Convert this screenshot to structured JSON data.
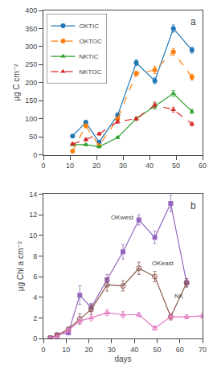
{
  "chart_data": [
    {
      "type": "line",
      "title": "a",
      "ylabel": "μg C cm⁻²",
      "xlim": [
        0,
        60
      ],
      "ylim": [
        0,
        400
      ],
      "xticks": [
        0,
        10,
        20,
        30,
        40,
        50,
        60
      ],
      "yticks": [
        0,
        50,
        100,
        150,
        200,
        250,
        300,
        350,
        400
      ],
      "grid": false,
      "legend": "upper left",
      "series": [
        {
          "name": "OKTIC",
          "x": [
            11,
            16,
            21,
            28,
            35,
            42,
            49,
            56
          ],
          "values": [
            52,
            90,
            35,
            110,
            255,
            205,
            350,
            290
          ],
          "yerr": [
            3,
            5,
            4,
            6,
            8,
            8,
            10,
            8
          ],
          "marker": "circle",
          "line_style": "solid"
        },
        {
          "name": "OKTOC",
          "x": [
            11,
            16,
            21,
            28,
            35,
            42,
            49,
            56
          ],
          "values": [
            10,
            80,
            25,
            100,
            225,
            235,
            285,
            215
          ],
          "yerr": [
            2,
            5,
            3,
            5,
            7,
            10,
            10,
            8
          ],
          "marker": "circle",
          "line_style": "dashed"
        },
        {
          "name": "NKTIC",
          "x": [
            11,
            16,
            21,
            28,
            35,
            42,
            49,
            56
          ],
          "values": [
            28,
            28,
            22,
            48,
            100,
            135,
            170,
            120
          ],
          "yerr": [
            3,
            3,
            2,
            3,
            5,
            8,
            8,
            6
          ],
          "marker": "triangle-up",
          "line_style": "solid"
        },
        {
          "name": "NKTOC",
          "x": [
            11,
            16,
            21,
            28,
            35,
            42,
            49,
            56
          ],
          "values": [
            30,
            42,
            58,
            92,
            100,
            138,
            125,
            85
          ],
          "yerr": [
            3,
            4,
            4,
            5,
            5,
            8,
            7,
            5
          ],
          "marker": "triangle-up",
          "line_style": "dashed"
        }
      ]
    },
    {
      "type": "line",
      "title": "b",
      "xlabel": "days",
      "ylabel": "μg Chl a cm⁻²",
      "xlim": [
        0,
        70
      ],
      "ylim": [
        0,
        14
      ],
      "xticks": [
        0,
        10,
        20,
        30,
        40,
        50,
        60,
        70
      ],
      "yticks": [
        0,
        2,
        4,
        6,
        8,
        10,
        12,
        14
      ],
      "grid": false,
      "series": [
        {
          "name": "OKwest",
          "x": [
            3,
            6,
            11,
            16,
            21,
            28,
            35,
            42,
            49,
            56,
            63
          ],
          "values": [
            0.05,
            0.35,
            0.55,
            4.2,
            3.0,
            5.7,
            8.4,
            11.5,
            9.8,
            13.1,
            5.4
          ],
          "yerr": [
            0.05,
            0.1,
            0.2,
            0.9,
            0.4,
            0.5,
            0.7,
            0.5,
            0.6,
            0.8,
            0.4
          ],
          "marker": "square",
          "line_style": "solid"
        },
        {
          "name": "OKeast",
          "x": [
            3,
            6,
            11,
            16,
            21,
            28,
            35,
            42,
            49,
            56,
            63
          ],
          "values": [
            0.05,
            0.3,
            0.9,
            1.9,
            2.8,
            5.2,
            5.1,
            6.8,
            6.0,
            2.1,
            5.4
          ],
          "yerr": [
            0.05,
            0.1,
            0.2,
            0.5,
            0.5,
            0.6,
            0.5,
            0.6,
            0.5,
            0.3,
            0.4
          ],
          "marker": "circle-open",
          "line_style": "solid"
        },
        {
          "name": "NK",
          "x": [
            3,
            6,
            11,
            16,
            21,
            28,
            35,
            42,
            49,
            56,
            63,
            70
          ],
          "values": [
            0.05,
            0.2,
            0.8,
            1.7,
            2.0,
            2.5,
            2.3,
            2.3,
            1.0,
            2.1,
            2.1,
            2.2
          ],
          "yerr": [
            0.05,
            0.1,
            0.2,
            0.3,
            0.3,
            0.3,
            0.3,
            0.2,
            0.2,
            0.3,
            0.2,
            0.2
          ],
          "marker": "triangle-up-open",
          "line_style": "solid"
        }
      ],
      "annotations": [
        {
          "text": "OKwest",
          "x": 29,
          "y": 11.2
        },
        {
          "text": "OKeast",
          "x": 47,
          "y": 6.8
        },
        {
          "text": "NK",
          "x": 57,
          "y": 3.6
        }
      ]
    }
  ]
}
